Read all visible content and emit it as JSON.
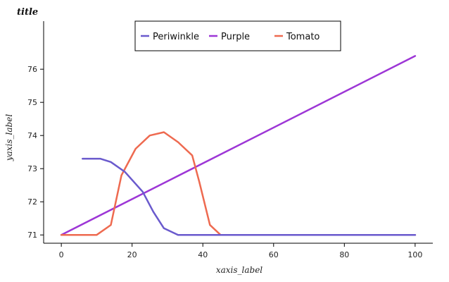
{
  "chart_data": {
    "type": "line",
    "title": "title",
    "xlabel": "xaxis_label",
    "ylabel": "yaxis_label",
    "xlim": [
      -5,
      105
    ],
    "ylim": [
      70.75,
      77.45
    ],
    "xticks": [
      0,
      20,
      40,
      60,
      80,
      100
    ],
    "yticks": [
      71,
      72,
      73,
      74,
      75,
      76
    ],
    "grid": false,
    "legend_position": "top-center",
    "series": [
      {
        "name": "Periwinkle",
        "color": "#6a5acd",
        "points": [
          [
            6,
            73.3
          ],
          [
            11,
            73.3
          ],
          [
            14,
            73.2
          ],
          [
            18,
            72.9
          ],
          [
            23,
            72.3
          ],
          [
            26,
            71.7
          ],
          [
            29,
            71.2
          ],
          [
            33,
            71.0
          ],
          [
            100,
            71.0
          ]
        ]
      },
      {
        "name": "Purple",
        "color": "#9d36d6",
        "points": [
          [
            0,
            71.0
          ],
          [
            100,
            76.4
          ]
        ]
      },
      {
        "name": "Tomato",
        "color": "#ee6a50",
        "points": [
          [
            0,
            71.0
          ],
          [
            5,
            71.0
          ],
          [
            10,
            71.0
          ],
          [
            14,
            71.3
          ],
          [
            17,
            72.8
          ],
          [
            21,
            73.6
          ],
          [
            25,
            74.0
          ],
          [
            29,
            74.1
          ],
          [
            33,
            73.8
          ],
          [
            37,
            73.4
          ],
          [
            39,
            72.6
          ],
          [
            42,
            71.3
          ],
          [
            45,
            71.0
          ],
          [
            100,
            71.0
          ]
        ]
      }
    ]
  }
}
